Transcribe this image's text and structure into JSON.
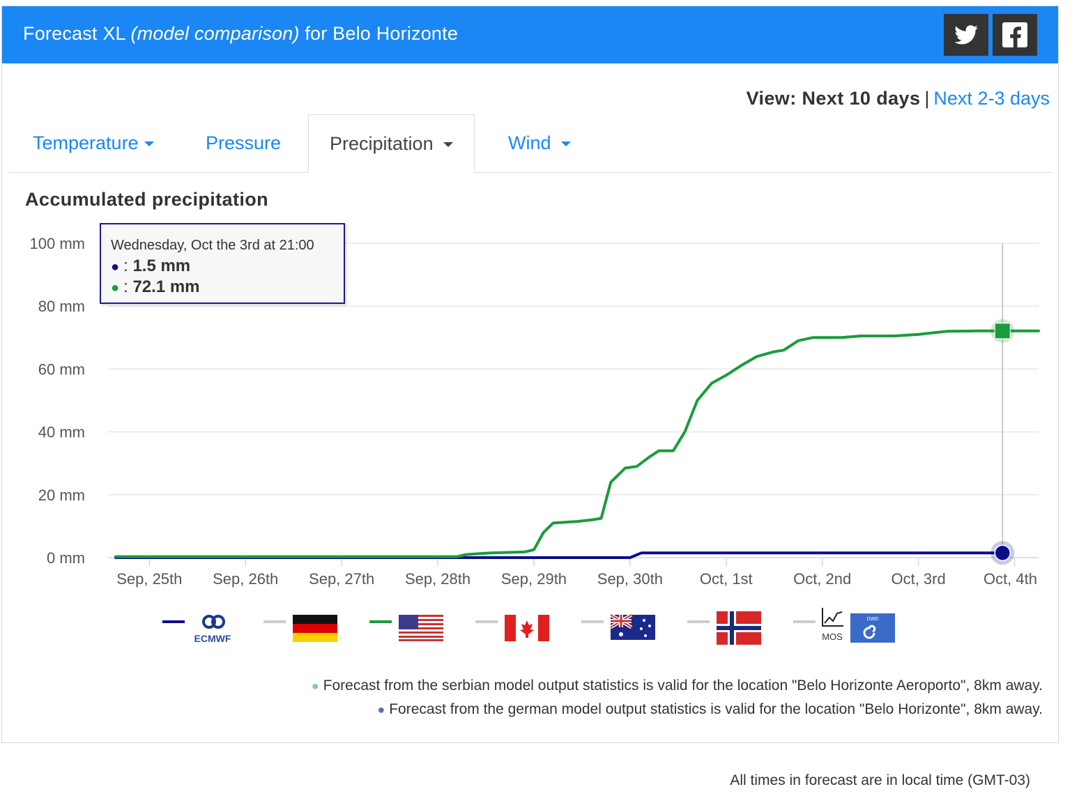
{
  "header": {
    "title_prefix": "Forecast XL",
    "title_italic": "(model comparison)",
    "title_suffix": "for Belo Horizonte",
    "twitter_icon": "twitter-icon",
    "facebook_icon": "facebook-icon",
    "background_color": "#1a87f5"
  },
  "view": {
    "label": "View: Next 10 days",
    "separator": "|",
    "alt_link": "Next 2-3 days"
  },
  "tabs": [
    {
      "label": "Temperature",
      "dropdown": true,
      "active": false
    },
    {
      "label": "Pressure",
      "dropdown": false,
      "active": false
    },
    {
      "label": "Precipitation",
      "dropdown": true,
      "active": true
    },
    {
      "label": "Wind",
      "dropdown": true,
      "active": false
    }
  ],
  "chart_title": "Accumulated precipitation",
  "tooltip": {
    "heading": "Wednesday, Oct the 3rd at 21:00",
    "rows": [
      {
        "marker": "●",
        "sep": ":",
        "value": "1.5 mm",
        "color": "#0d0d8a"
      },
      {
        "marker": "●",
        "sep": ":",
        "value": "72.1 mm",
        "color": "#1a9c3c"
      }
    ]
  },
  "chart_data": {
    "type": "line",
    "title": "Accumulated precipitation",
    "xlabel": "",
    "ylabel": "",
    "ylim": [
      0,
      100
    ],
    "yticks": [
      "0 mm",
      "20 mm",
      "40 mm",
      "60 mm",
      "80 mm",
      "100 mm"
    ],
    "ytick_values": [
      0,
      20,
      40,
      60,
      80,
      100
    ],
    "xlim_days": [
      24.57,
      34.25
    ],
    "xticks": [
      "Sep, 25th",
      "Sep, 26th",
      "Sep, 27th",
      "Sep, 28th",
      "Sep, 29th",
      "Sep, 30th",
      "Oct, 1st",
      "Oct, 2nd",
      "Oct, 3rd",
      "Oct, 4th"
    ],
    "xtick_values": [
      25,
      26,
      27,
      28,
      29,
      30,
      31,
      32,
      33,
      34
    ],
    "grid": true,
    "crosshair_day": 33.875,
    "series": [
      {
        "model": "ECMWF",
        "color": "#0d0d8a",
        "marker": "circle",
        "points": [
          [
            24.65,
            0
          ],
          [
            30.0,
            0
          ],
          [
            30.12,
            1.5
          ],
          [
            33.875,
            1.5
          ]
        ]
      },
      {
        "model": "GFS (USA)",
        "color": "#1a9c3c",
        "marker": "square",
        "points": [
          [
            24.65,
            0.3
          ],
          [
            28.2,
            0.3
          ],
          [
            28.3,
            1.0
          ],
          [
            28.55,
            1.5
          ],
          [
            28.9,
            1.8
          ],
          [
            29.0,
            2.5
          ],
          [
            29.1,
            8
          ],
          [
            29.2,
            11
          ],
          [
            29.45,
            11.5
          ],
          [
            29.6,
            12
          ],
          [
            29.7,
            12.5
          ],
          [
            29.8,
            24
          ],
          [
            29.95,
            28.5
          ],
          [
            30.07,
            29
          ],
          [
            30.2,
            32
          ],
          [
            30.3,
            34
          ],
          [
            30.45,
            34
          ],
          [
            30.57,
            40
          ],
          [
            30.7,
            50
          ],
          [
            30.85,
            55.5
          ],
          [
            31.0,
            58
          ],
          [
            31.15,
            61
          ],
          [
            31.32,
            64
          ],
          [
            31.5,
            65.5
          ],
          [
            31.6,
            66
          ],
          [
            31.75,
            69
          ],
          [
            31.9,
            70
          ],
          [
            32.2,
            70
          ],
          [
            32.4,
            70.5
          ],
          [
            32.75,
            70.5
          ],
          [
            33.0,
            71
          ],
          [
            33.3,
            72
          ],
          [
            33.6,
            72.1
          ],
          [
            34.25,
            72.1
          ]
        ]
      }
    ]
  },
  "legend": [
    {
      "model": "ECMWF",
      "icon": "ecmwf-logo-icon",
      "label": "ECMWF",
      "color": "#0d0d8a"
    },
    {
      "model": "ICON (Germany)",
      "icon": "germany-flag-icon",
      "color": "#cccccc"
    },
    {
      "model": "GFS (USA)",
      "icon": "usa-flag-icon",
      "color": "#1a9c3c"
    },
    {
      "model": "GEM (Canada)",
      "icon": "canada-flag-icon",
      "color": "#cccccc"
    },
    {
      "model": "ACCESS (Australia)",
      "icon": "australia-flag-icon",
      "color": "#cccccc"
    },
    {
      "model": "MET (Norway)",
      "icon": "norway-flag-icon",
      "color": "#cccccc"
    },
    {
      "model": "MOS",
      "icon": "mos-icon",
      "label": "MOS",
      "color": "#cccccc"
    },
    {
      "model": "DWD",
      "icon": "dwd-logo-icon",
      "label": "DWD",
      "color": "#cccccc"
    }
  ],
  "notes": [
    {
      "text": "Forecast from the serbian model output statistics is valid for the location \"Belo Horizonte Aeroporto\", 8km away.",
      "color": "#8fc79a"
    },
    {
      "text": "Forecast from the german model output statistics is valid for the location \"Belo Horizonte\", 8km away.",
      "color": "#5a6fb0"
    }
  ],
  "footer": "All times in forecast are in local time (GMT-03)"
}
